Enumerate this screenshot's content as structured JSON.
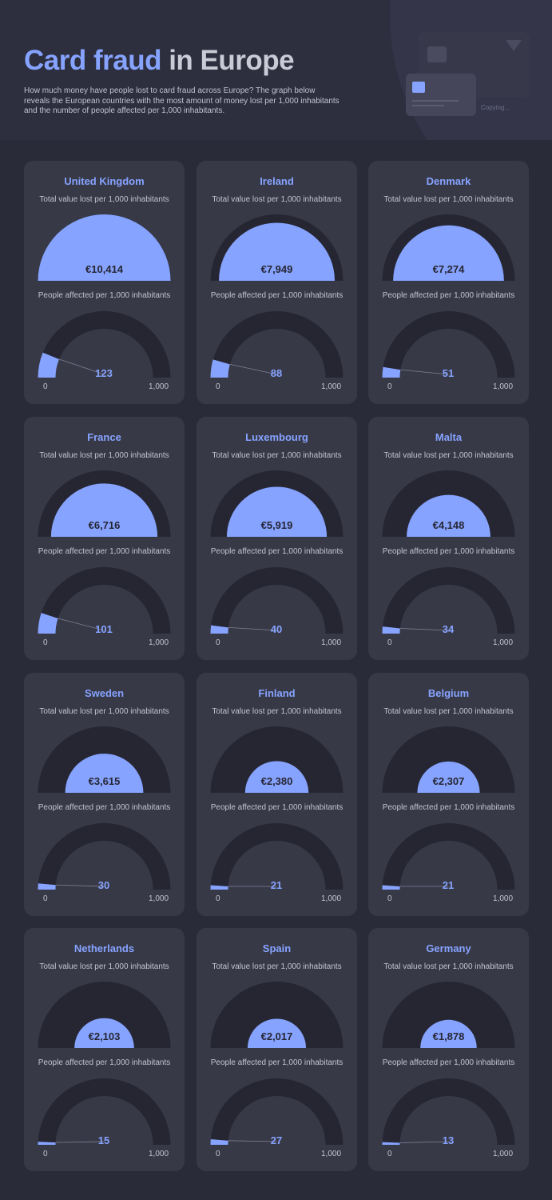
{
  "header": {
    "title_main": "Card fraud",
    "title_rest": " in Europe",
    "intro": "How much money have people lost to card fraud across Europe? The graph below reveals the European countries with the most amount of money lost per 1,000 inhabitants and the number of people affected per 1,000 inhabitants.",
    "copying": "Copying..."
  },
  "labels": {
    "value_lost": "Total value lost per 1,000 inhabitants",
    "people_affected": "People affected per 1,000 inhabitants",
    "axis_min": "0",
    "axis_max": "1,000"
  },
  "colors": {
    "background": "#2a2b39",
    "card": "#383947",
    "track": "#262633",
    "accent": "#86a3ff",
    "text": "#c2c4cf"
  },
  "chart_data": {
    "type": "gauge",
    "value_max": 10414,
    "people_range": [
      0,
      1000
    ],
    "items": [
      {
        "country": "United Kingdom",
        "value": 10414,
        "value_label": "€10,414",
        "people": 123,
        "people_label": "123"
      },
      {
        "country": "Ireland",
        "value": 7949,
        "value_label": "€7,949",
        "people": 88,
        "people_label": "88"
      },
      {
        "country": "Denmark",
        "value": 7274,
        "value_label": "€7,274",
        "people": 51,
        "people_label": "51"
      },
      {
        "country": "France",
        "value": 6716,
        "value_label": "€6,716",
        "people": 101,
        "people_label": "101"
      },
      {
        "country": "Luxembourg",
        "value": 5919,
        "value_label": "€5,919",
        "people": 40,
        "people_label": "40"
      },
      {
        "country": "Malta",
        "value": 4148,
        "value_label": "€4,148",
        "people": 34,
        "people_label": "34"
      },
      {
        "country": "Sweden",
        "value": 3615,
        "value_label": "€3,615",
        "people": 30,
        "people_label": "30"
      },
      {
        "country": "Finland",
        "value": 2380,
        "value_label": "€2,380",
        "people": 21,
        "people_label": "21"
      },
      {
        "country": "Belgium",
        "value": 2307,
        "value_label": "€2,307",
        "people": 21,
        "people_label": "21"
      },
      {
        "country": "Netherlands",
        "value": 2103,
        "value_label": "€2,103",
        "people": 15,
        "people_label": "15"
      },
      {
        "country": "Spain",
        "value": 2017,
        "value_label": "€2,017",
        "people": 27,
        "people_label": "27"
      },
      {
        "country": "Germany",
        "value": 1878,
        "value_label": "€1,878",
        "people": 13,
        "people_label": "13"
      }
    ]
  }
}
